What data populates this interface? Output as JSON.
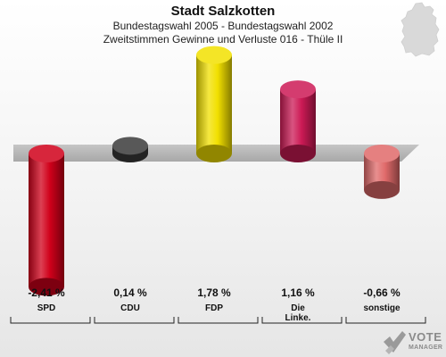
{
  "header": {
    "title": "Stadt Salzkotten",
    "subtitle1": "Bundestagswahl 2005 - Bundestagswahl 2002",
    "subtitle2": "Zweitstimmen Gewinne und Verluste 016 - Thüle II"
  },
  "chart_data": {
    "type": "bar",
    "categories": [
      "SPD",
      "CDU",
      "FDP",
      "Die Linke.",
      "sonstige"
    ],
    "category_lines": [
      [
        "SPD"
      ],
      [
        "CDU"
      ],
      [
        "FDP"
      ],
      [
        "Die",
        "Linke."
      ],
      [
        "sonstige"
      ]
    ],
    "values": [
      -2.41,
      0.14,
      1.78,
      1.16,
      -0.66
    ],
    "value_labels": [
      "-2,41 %",
      "0,14 %",
      "1,78 %",
      "1,16 %",
      "-0,66 %"
    ],
    "colors": [
      "#d0001a",
      "#3a3a3a",
      "#f2e000",
      "#cc1a55",
      "#e06a6a"
    ],
    "title": "Stadt Salzkotten",
    "xlabel": "",
    "ylabel": "",
    "grid": false,
    "legend": "none"
  },
  "logo": {
    "line1": "VOTE",
    "line2": "MANAGER"
  }
}
